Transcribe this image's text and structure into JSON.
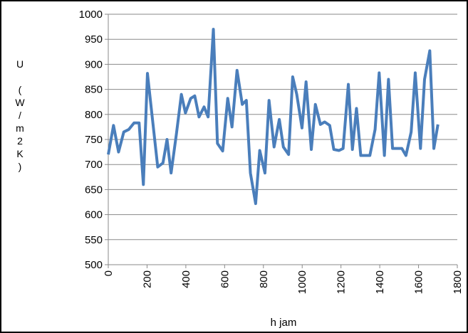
{
  "chart_data": {
    "type": "line",
    "xlabel": "h jam",
    "ylabel": "U (W/m2K)",
    "x": [
      0,
      27,
      53,
      80,
      106,
      133,
      159,
      181,
      202,
      228,
      255,
      282,
      303,
      324,
      351,
      377,
      398,
      425,
      446,
      468,
      494,
      515,
      542,
      563,
      590,
      616,
      638,
      664,
      691,
      712,
      733,
      760,
      781,
      808,
      829,
      855,
      882,
      903,
      930,
      951,
      972,
      999,
      1020,
      1047,
      1068,
      1094,
      1116,
      1142,
      1163,
      1190,
      1211,
      1238,
      1259,
      1280,
      1302,
      1328,
      1349,
      1376,
      1397,
      1424,
      1445,
      1466,
      1493,
      1514,
      1535,
      1562,
      1583,
      1610,
      1631,
      1658,
      1679,
      1700
    ],
    "series": [
      {
        "color": "#4a7ebb",
        "values": [
          720,
          778,
          725,
          765,
          770,
          783,
          783,
          660,
          882,
          790,
          695,
          703,
          750,
          683,
          760,
          840,
          803,
          832,
          837,
          795,
          815,
          795,
          970,
          742,
          727,
          832,
          775,
          888,
          820,
          828,
          683,
          622,
          728,
          683,
          828,
          735,
          790,
          735,
          720,
          875,
          840,
          773,
          865,
          730,
          820,
          780,
          785,
          778,
          730,
          728,
          732,
          860,
          730,
          812,
          718,
          718,
          718,
          770,
          883,
          718,
          870,
          732,
          732,
          732,
          718,
          765,
          883,
          732,
          870,
          927,
          732,
          780
        ]
      }
    ],
    "xlim": [
      0,
      1800
    ],
    "xticks": [
      0,
      200,
      400,
      600,
      800,
      1000,
      1200,
      1400,
      1600,
      1800
    ],
    "ylim": [
      500,
      1000
    ],
    "yticks": [
      500,
      550,
      600,
      650,
      700,
      750,
      800,
      850,
      900,
      950,
      1000
    ],
    "grid": true
  }
}
